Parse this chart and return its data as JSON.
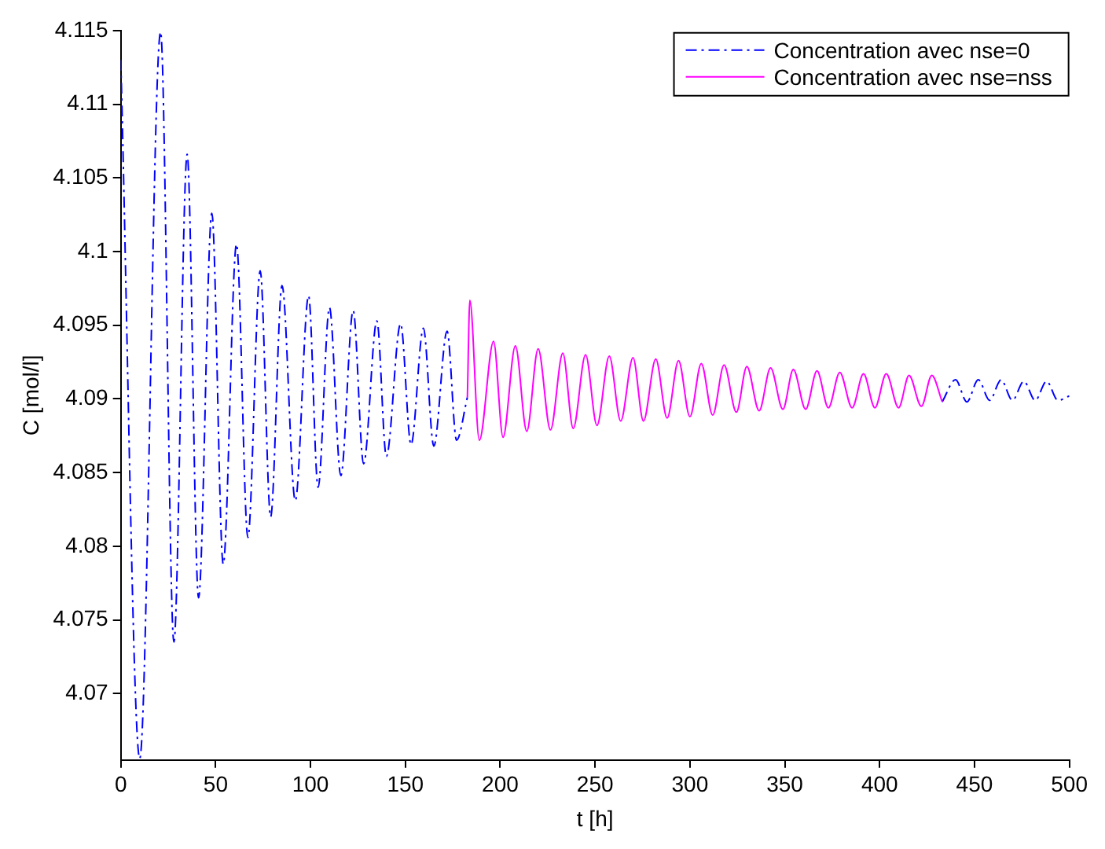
{
  "chart_data": {
    "type": "line",
    "xlabel": "t [h]",
    "ylabel": "C [mol/l]",
    "xlim": [
      0,
      500
    ],
    "ylim": [
      4.0655,
      4.115
    ],
    "xticks": [
      0,
      50,
      100,
      150,
      200,
      250,
      300,
      350,
      400,
      450,
      500
    ],
    "yticks": [
      4.07,
      4.075,
      4.08,
      4.085,
      4.09,
      4.095,
      4.1,
      4.105,
      4.11,
      4.115
    ],
    "grid": false,
    "legend": "top right",
    "marker": "none",
    "series": [
      {
        "name": "Concentration avec nse=0",
        "color": "#0000ff",
        "line_style": "dashed",
        "x": [
          0,
          10,
          21,
          28,
          35,
          41,
          48,
          54,
          61,
          67,
          73.5,
          79,
          85,
          92,
          99,
          104,
          110,
          116,
          122.5,
          128,
          135,
          140,
          147.5,
          153,
          159.5,
          165,
          172,
          177,
          182.7,
          184,
          189,
          196.5,
          201.5,
          208,
          214,
          220,
          226.5,
          233,
          238.5,
          245,
          251,
          257.5,
          263.5,
          270,
          275.5,
          282,
          288,
          294,
          300,
          306,
          312,
          318,
          324.5,
          330,
          336.5,
          342.5,
          349,
          354.5,
          361,
          367,
          373,
          379,
          385.5,
          391.5,
          397.5,
          403.5,
          410,
          415.5,
          422,
          427.5,
          433,
          440,
          446,
          452,
          458,
          464,
          470,
          476,
          482,
          488,
          494,
          500
        ],
        "values": [
          4.113,
          4.0656,
          4.1149,
          4.0735,
          4.1066,
          4.0765,
          4.1026,
          4.0788,
          4.1005,
          4.0806,
          4.0987,
          4.082,
          4.0977,
          4.0831,
          4.097,
          4.084,
          4.0962,
          4.0848,
          4.096,
          4.0856,
          4.0953,
          4.0861,
          4.0951,
          4.0869,
          4.0948,
          4.0868,
          4.0946,
          4.0872,
          4.0901,
          null,
          null,
          null,
          null,
          null,
          null,
          null,
          null,
          null,
          null,
          null,
          null,
          null,
          null,
          null,
          null,
          null,
          null,
          null,
          null,
          null,
          null,
          null,
          null,
          null,
          null,
          null,
          null,
          null,
          null,
          null,
          null,
          null,
          null,
          null,
          null,
          null,
          null,
          null,
          null,
          null,
          4.0898,
          4.0913,
          4.0898,
          4.0913,
          4.0899,
          4.0913,
          4.0899,
          4.0912,
          4.0899,
          4.0912,
          4.0899,
          4.0902
        ]
      },
      {
        "name": "Concentration avec nse=nss",
        "color": "#ff00ff",
        "line_style": "solid",
        "x": [
          182.7,
          184,
          189,
          196.5,
          201.5,
          208,
          214,
          220,
          226.5,
          233,
          238.5,
          245,
          251,
          257.5,
          263.5,
          270,
          275.5,
          282,
          288,
          294,
          300,
          306,
          312,
          318,
          324.5,
          330,
          336.5,
          342.5,
          349,
          354.5,
          361,
          367,
          373,
          379,
          385.5,
          391.5,
          397.5,
          403.5,
          410,
          415.5,
          422,
          427.5,
          433
        ],
        "values": [
          4.0901,
          4.0967,
          4.0872,
          4.0939,
          4.0874,
          4.0936,
          4.0878,
          4.0934,
          4.0879,
          4.0931,
          4.088,
          4.093,
          4.0882,
          4.0929,
          4.0885,
          4.0928,
          4.0885,
          4.0927,
          4.0887,
          4.0926,
          4.0888,
          4.0924,
          4.0889,
          4.0923,
          4.0891,
          4.0922,
          4.0892,
          4.0921,
          4.0893,
          4.092,
          4.0893,
          4.0919,
          4.0894,
          4.0918,
          4.0894,
          4.0917,
          4.0894,
          4.0917,
          4.0894,
          4.0916,
          4.0895,
          4.0916,
          4.0898
        ]
      }
    ]
  }
}
